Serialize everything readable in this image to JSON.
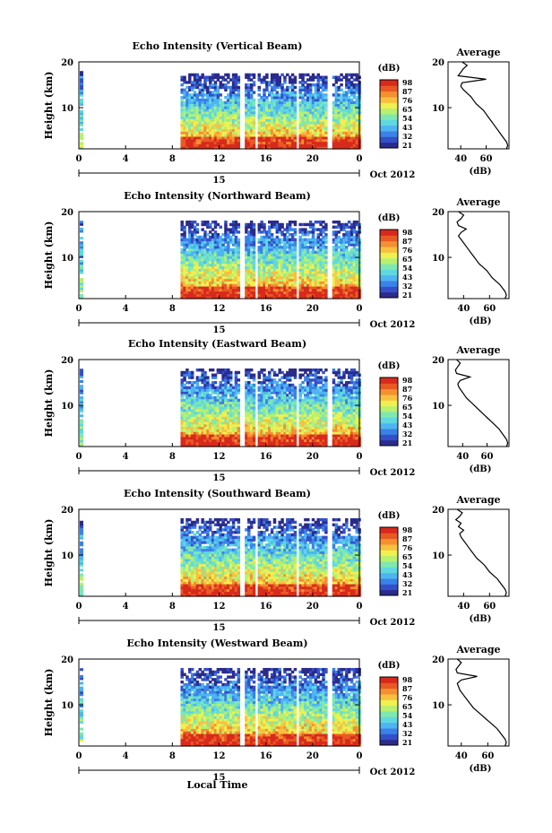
{
  "xlabel": "Local Time",
  "colorbar": {
    "unit": "(dB)",
    "colors": [
      "#2b2b8c",
      "#3350c8",
      "#3b82e8",
      "#4fb4f2",
      "#5fd8e0",
      "#7fe8b0",
      "#b8f070",
      "#f0f050",
      "#f8c040",
      "#f49030",
      "#e85a24",
      "#d82a1c"
    ]
  },
  "chart_data": [
    {
      "type": "heatmap",
      "title": "Echo Intensity (Vertical Beam)",
      "ylabel": "Height (km)",
      "yticks": [
        "10",
        "20"
      ],
      "ylim": [
        1,
        20
      ],
      "xticks": [
        "0",
        "4",
        "8",
        "12",
        "16",
        "20",
        "0"
      ],
      "xlim": [
        0,
        24
      ],
      "date_day": "15",
      "date_label": "Oct 2012",
      "colorbar_labels": [
        "98",
        "87",
        "76",
        "65",
        "54",
        "43",
        "32",
        "21"
      ],
      "colorbar_range": [
        21,
        98
      ],
      "gaps_hours": [
        [
          13.7,
          14.2
        ],
        [
          15.0,
          15.4
        ],
        [
          18.5,
          18.9
        ],
        [
          21.2,
          21.6
        ]
      ],
      "data_start_hour": 8.7,
      "top_km": 17,
      "profile": {
        "title": "Average",
        "xlabel": "(dB)",
        "xticks": [
          "40",
          "60"
        ],
        "xlim": [
          30,
          78
        ],
        "values": [
          76,
          77,
          76,
          74,
          72,
          70,
          68,
          66,
          64,
          62,
          60,
          58,
          55,
          52,
          50,
          48,
          45,
          42,
          40,
          41,
          60,
          38,
          40,
          42,
          45,
          41
        ]
      }
    },
    {
      "type": "heatmap",
      "title": "Echo Intensity (Northward Beam)",
      "ylabel": "Height (km)",
      "yticks": [
        "10",
        "20"
      ],
      "ylim": [
        1,
        20
      ],
      "xticks": [
        "0",
        "4",
        "8",
        "12",
        "16",
        "20",
        "0"
      ],
      "xlim": [
        0,
        24
      ],
      "date_day": "15",
      "date_label": "Oct 2012",
      "colorbar_labels": [
        "98",
        "87",
        "76",
        "65",
        "54",
        "43",
        "32",
        "21"
      ],
      "colorbar_range": [
        21,
        98
      ],
      "gaps_hours": [
        [
          13.7,
          14.2
        ],
        [
          15.0,
          15.4
        ],
        [
          18.5,
          18.9
        ],
        [
          21.2,
          21.6
        ]
      ],
      "data_start_hour": 8.7,
      "top_km": 18,
      "profile": {
        "title": "Average",
        "xlabel": "(dB)",
        "xticks": [
          "40",
          "60"
        ],
        "xlim": [
          28,
          75
        ],
        "values": [
          72,
          73,
          72,
          70,
          68,
          65,
          62,
          60,
          58,
          55,
          52,
          50,
          48,
          46,
          44,
          42,
          40,
          38,
          36,
          38,
          42,
          36,
          35,
          38,
          40,
          36
        ]
      }
    },
    {
      "type": "heatmap",
      "title": "Echo Intensity (Eastward Beam)",
      "ylabel": "Height (km)",
      "yticks": [
        "10",
        "20"
      ],
      "ylim": [
        1,
        20
      ],
      "xticks": [
        "0",
        "4",
        "8",
        "12",
        "16",
        "20",
        "0"
      ],
      "xlim": [
        0,
        24
      ],
      "date_day": "15",
      "date_label": "Oct 2012",
      "colorbar_labels": [
        "98",
        "87",
        "76",
        "65",
        "54",
        "43",
        "32",
        "21"
      ],
      "colorbar_range": [
        21,
        98
      ],
      "gaps_hours": [
        [
          13.7,
          14.2
        ],
        [
          15.0,
          15.4
        ],
        [
          18.5,
          18.9
        ],
        [
          21.2,
          21.6
        ]
      ],
      "data_start_hour": 8.7,
      "top_km": 18,
      "profile": {
        "title": "Average",
        "xlabel": "(dB)",
        "xticks": [
          "40",
          "60"
        ],
        "xlim": [
          28,
          78
        ],
        "values": [
          76,
          77,
          76,
          74,
          72,
          70,
          67,
          64,
          61,
          58,
          55,
          52,
          49,
          46,
          43,
          41,
          39,
          37,
          36,
          38,
          46,
          35,
          34,
          36,
          38,
          35
        ]
      }
    },
    {
      "type": "heatmap",
      "title": "Echo Intensity (Southward Beam)",
      "ylabel": "Height (km)",
      "yticks": [
        "10",
        "20"
      ],
      "ylim": [
        1,
        20
      ],
      "xticks": [
        "0",
        "4",
        "8",
        "12",
        "16",
        "20",
        "0"
      ],
      "xlim": [
        0,
        24
      ],
      "date_day": "15",
      "date_label": "Oct 2012",
      "colorbar_labels": [
        "98",
        "87",
        "76",
        "65",
        "54",
        "43",
        "32",
        "21"
      ],
      "colorbar_range": [
        21,
        98
      ],
      "gaps_hours": [
        [
          13.7,
          14.2
        ],
        [
          15.0,
          15.4
        ],
        [
          18.5,
          18.9
        ],
        [
          21.2,
          21.6
        ]
      ],
      "data_start_hour": 8.7,
      "top_km": 18,
      "profile": {
        "title": "Average",
        "xlabel": "(dB)",
        "xticks": [
          "40",
          "60"
        ],
        "xlim": [
          28,
          75
        ],
        "values": [
          72,
          73,
          72,
          70,
          68,
          66,
          63,
          60,
          58,
          56,
          53,
          50,
          48,
          46,
          44,
          42,
          40,
          38,
          37,
          40,
          36,
          38,
          34,
          37,
          39,
          35
        ]
      }
    },
    {
      "type": "heatmap",
      "title": "Echo Intensity (Westward Beam)",
      "ylabel": "Height (km)",
      "yticks": [
        "10",
        "20"
      ],
      "ylim": [
        1,
        20
      ],
      "xticks": [
        "0",
        "4",
        "8",
        "12",
        "16",
        "20",
        "0"
      ],
      "xlim": [
        0,
        24
      ],
      "date_day": "15",
      "date_label": "Oct 2012",
      "colorbar_labels": [
        "98",
        "87",
        "76",
        "65",
        "54",
        "43",
        "32",
        "21"
      ],
      "colorbar_range": [
        21,
        98
      ],
      "gaps_hours": [
        [
          13.7,
          14.2
        ],
        [
          15.0,
          15.4
        ],
        [
          18.5,
          18.9
        ],
        [
          21.2,
          21.6
        ]
      ],
      "data_start_hour": 8.7,
      "top_km": 18,
      "profile": {
        "title": "Average",
        "xlabel": "(dB)",
        "xticks": [
          "40",
          "60"
        ],
        "xlim": [
          30,
          76
        ],
        "values": [
          73,
          74,
          73,
          71,
          69,
          67,
          64,
          61,
          58,
          55,
          52,
          49,
          47,
          45,
          43,
          41,
          39,
          38,
          37,
          40,
          52,
          37,
          36,
          38,
          40,
          37
        ]
      }
    }
  ]
}
